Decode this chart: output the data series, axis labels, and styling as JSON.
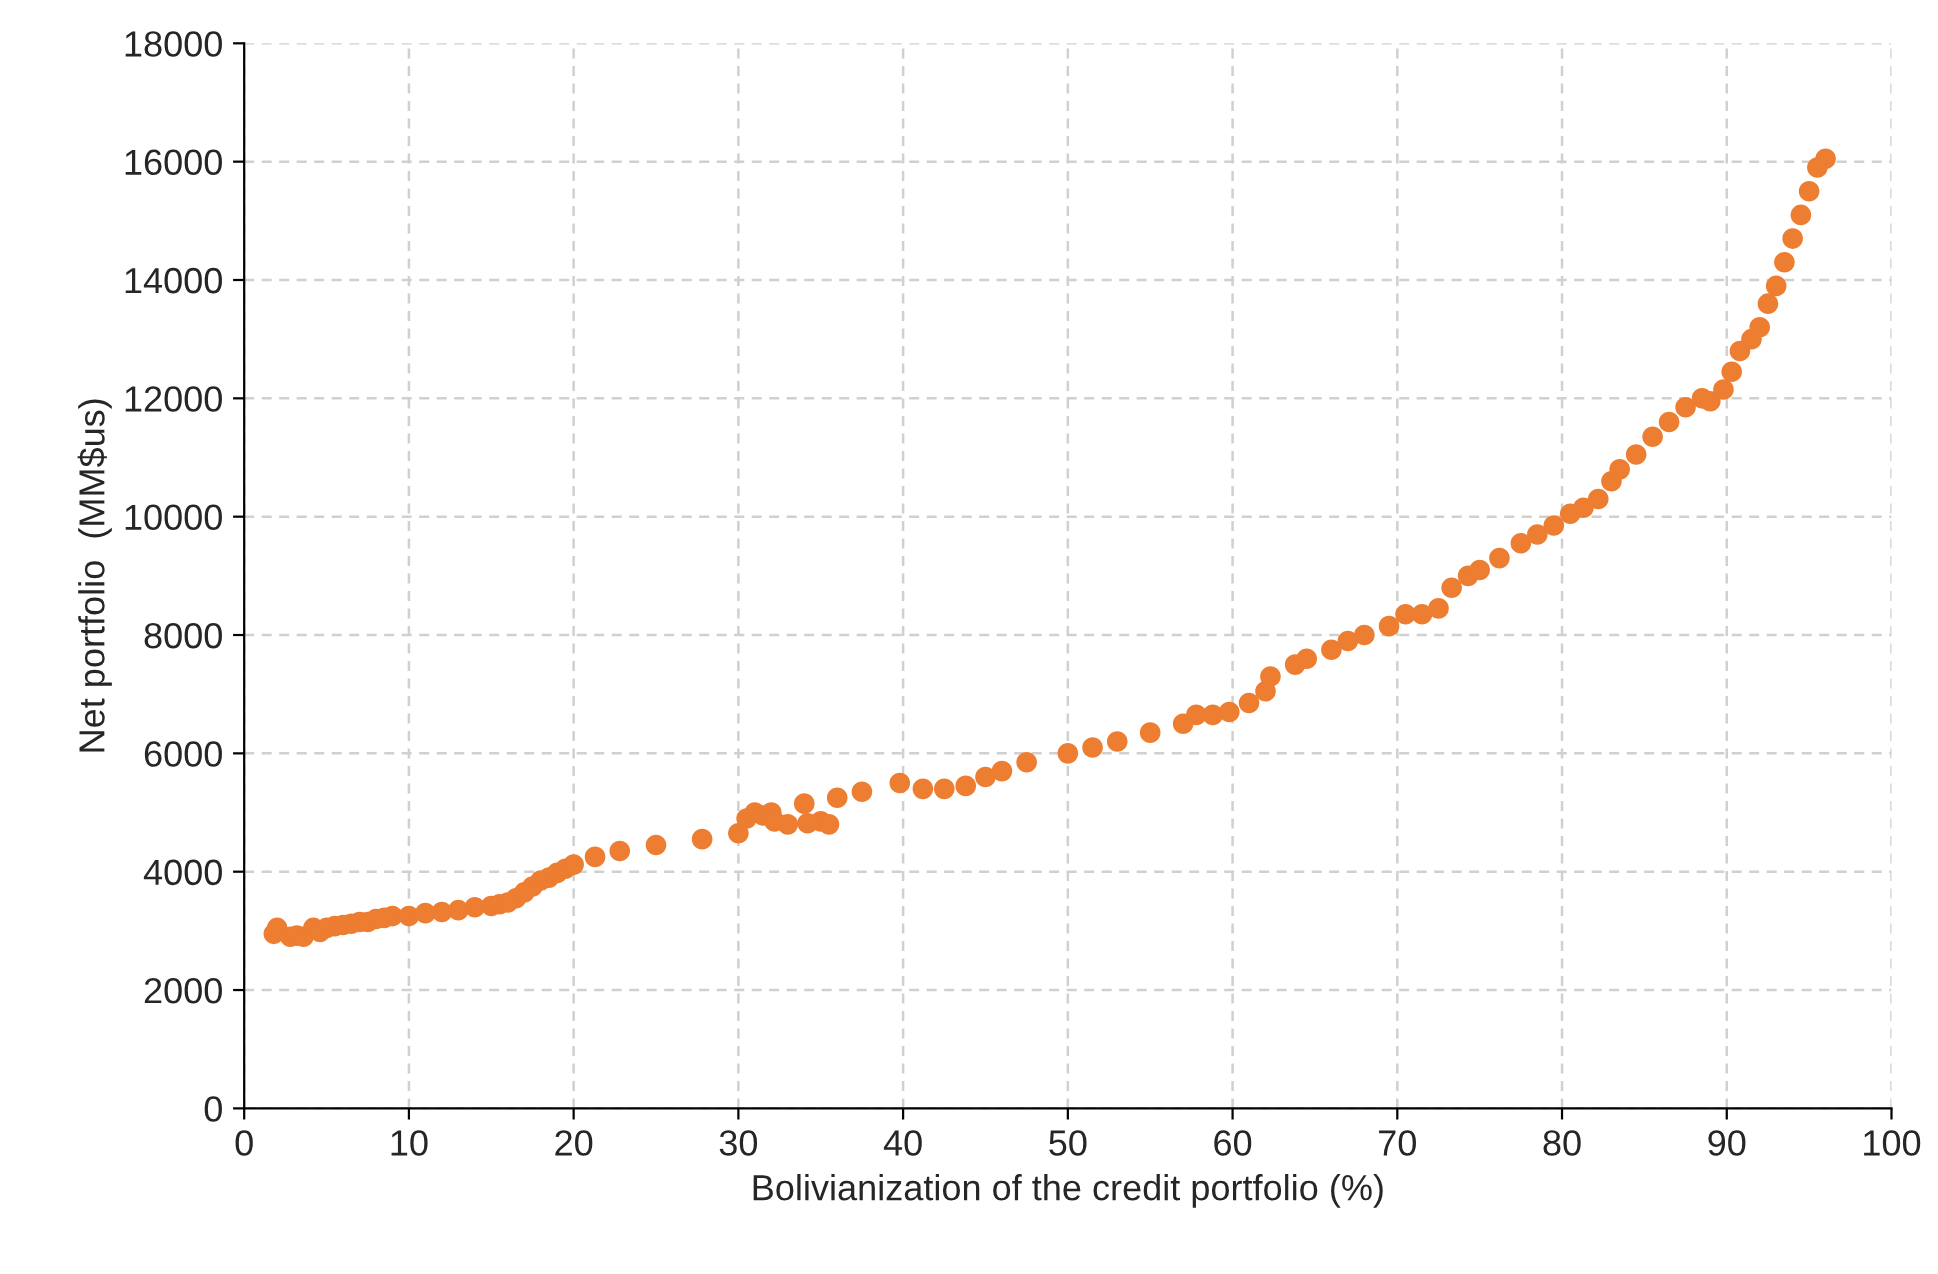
{
  "chart_data": {
    "type": "scatter",
    "xlabel": "Bolivianization of the credit portfolio (%)",
    "ylabel": "Net portfolio  (MM$us)",
    "xlim": [
      0,
      100
    ],
    "xticks": [
      0,
      10,
      20,
      30,
      40,
      50,
      60,
      70,
      80,
      90,
      100
    ],
    "ylim": [
      0,
      18000
    ],
    "yticks": [
      0,
      2000,
      4000,
      6000,
      8000,
      10000,
      12000,
      14000,
      16000,
      18000
    ],
    "grid": true,
    "marker": "circle",
    "series": [
      {
        "color": "#ed7d31",
        "x": [
          1.8,
          2,
          2.8,
          3.2,
          3.6,
          4.2,
          4.6,
          5,
          5.5,
          6,
          6.5,
          7,
          7.5,
          8,
          8.5,
          9,
          10,
          11,
          12,
          13,
          14,
          15,
          15.5,
          16,
          16.5,
          17,
          17.5,
          18,
          18.5,
          19,
          19.5,
          20,
          21.3,
          22.8,
          25,
          27.8,
          30,
          30.5,
          31,
          31.5,
          32,
          32.2,
          33,
          34,
          34.2,
          35,
          35.5,
          36,
          37.5,
          39.8,
          41.2,
          42.5,
          43.8,
          45,
          46,
          47.5,
          50,
          51.5,
          53,
          55,
          57,
          57.8,
          58.8,
          59.8,
          61,
          62,
          62.3,
          63.8,
          64.5,
          66,
          67,
          68,
          69.5,
          70.5,
          71.5,
          72.5,
          73.3,
          74.3,
          75,
          76.2,
          77.5,
          78.5,
          79.5,
          80.5,
          81.3,
          82.2,
          83,
          83.5,
          84.5,
          85.5,
          86.5,
          87.5,
          88.5,
          89,
          89.8,
          90.3,
          90.8,
          91.5,
          92,
          92.5,
          93,
          93.5,
          94,
          94.5,
          95,
          95.5,
          96
        ],
        "values": [
          2950,
          3050,
          2900,
          2920,
          2900,
          3050,
          2980,
          3050,
          3080,
          3100,
          3120,
          3150,
          3150,
          3200,
          3220,
          3250,
          3250,
          3300,
          3320,
          3350,
          3400,
          3420,
          3450,
          3480,
          3550,
          3650,
          3750,
          3850,
          3900,
          3980,
          4050,
          4120,
          4250,
          4350,
          4450,
          4550,
          4650,
          4900,
          5000,
          4950,
          5000,
          4850,
          4800,
          5150,
          4820,
          4850,
          4800,
          5250,
          5350,
          5500,
          5400,
          5400,
          5450,
          5600,
          5700,
          5850,
          6000,
          6100,
          6200,
          6350,
          6500,
          6650,
          6650,
          6700,
          6850,
          7050,
          7300,
          7500,
          7600,
          7750,
          7900,
          8000,
          8150,
          8350,
          8350,
          8450,
          8800,
          9000,
          9100,
          9300,
          9550,
          9700,
          9850,
          10050,
          10150,
          10300,
          10600,
          10800,
          11050,
          11350,
          11600,
          11850,
          12000,
          11950,
          12150,
          12450,
          12800,
          13000,
          13200,
          13600,
          13900,
          14300,
          14700,
          15100,
          15500,
          15900,
          16050
        ]
      }
    ]
  }
}
